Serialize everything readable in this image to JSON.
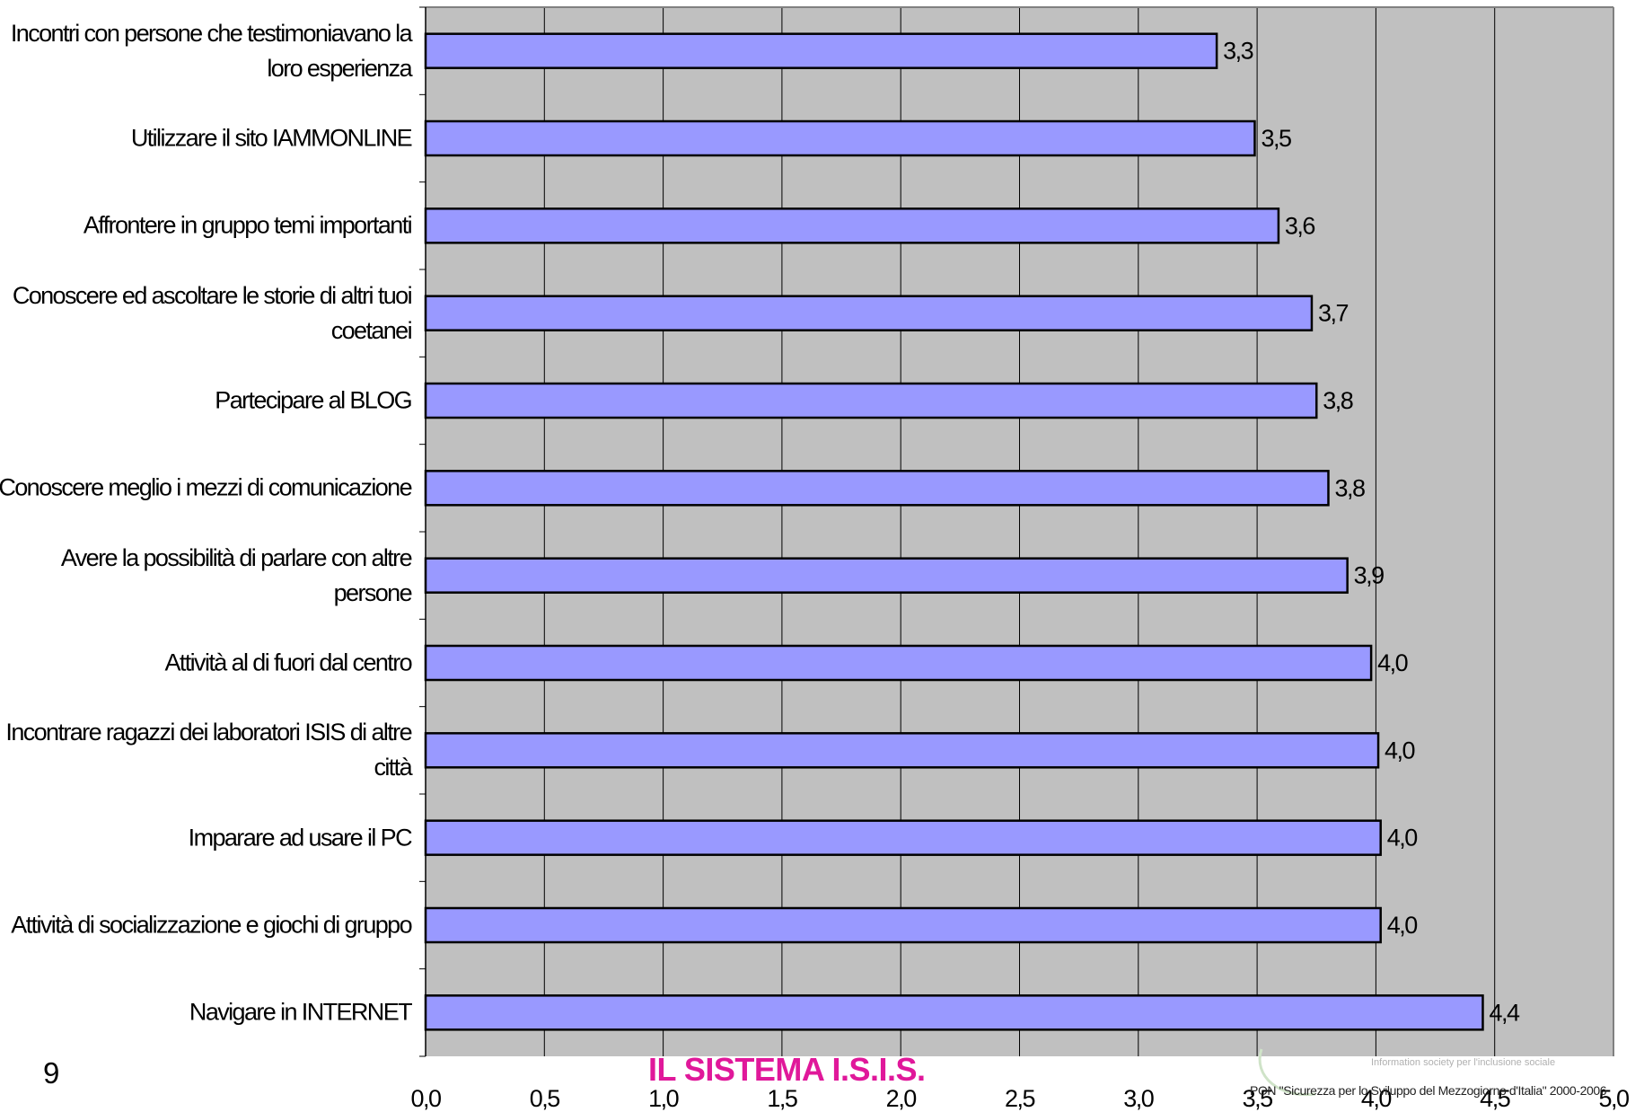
{
  "chart_data": {
    "type": "bar",
    "orientation": "horizontal",
    "title": "",
    "xlabel": "",
    "ylabel": "",
    "xlim": [
      0,
      5
    ],
    "x_ticks": [
      "0,0",
      "0,5",
      "1,0",
      "1,5",
      "2,0",
      "2,5",
      "3,0",
      "3,5",
      "4,0",
      "4,5",
      "5,0"
    ],
    "grid": true,
    "categories": [
      "Incontri con persone che testimoniavano la loro esperienza",
      "Utilizzare il sito IAMMONLINE",
      "Affrontere in gruppo temi importanti",
      "Conoscere ed ascoltare le storie di altri tuoi coetanei",
      "Partecipare al BLOG",
      "Conoscere meglio i mezzi di comunicazione",
      "Avere la possibilità di parlare con altre persone",
      "Attività al di fuori dal centro",
      "Incontrare ragazzi dei laboratori ISIS di altre città",
      "Imparare ad usare il PC",
      "Attività di socializzazione e giochi di gruppo",
      "Navigare in INTERNET"
    ],
    "values": [
      3.33,
      3.49,
      3.59,
      3.73,
      3.75,
      3.8,
      3.88,
      3.98,
      4.01,
      4.02,
      4.02,
      4.45
    ],
    "value_labels": [
      "3,3",
      "3,5",
      "3,6",
      "3,7",
      "3,8",
      "3,8",
      "3,9",
      "4,0",
      "4,0",
      "4,0",
      "4,0",
      "4,4"
    ],
    "colors": {
      "bar": "#9999ff",
      "plot_background": "#c0c0c0",
      "bar_border": "#000000"
    }
  },
  "footer": {
    "slide_number": "9",
    "title": "IL SISTEMA I.S.I.S.",
    "tagline": "Information society per l'inclusione sociale",
    "pon": "PON \"Sicurezza per lo Sviluppo del Mezzogiorno d'Italia\" 2000-2006"
  }
}
